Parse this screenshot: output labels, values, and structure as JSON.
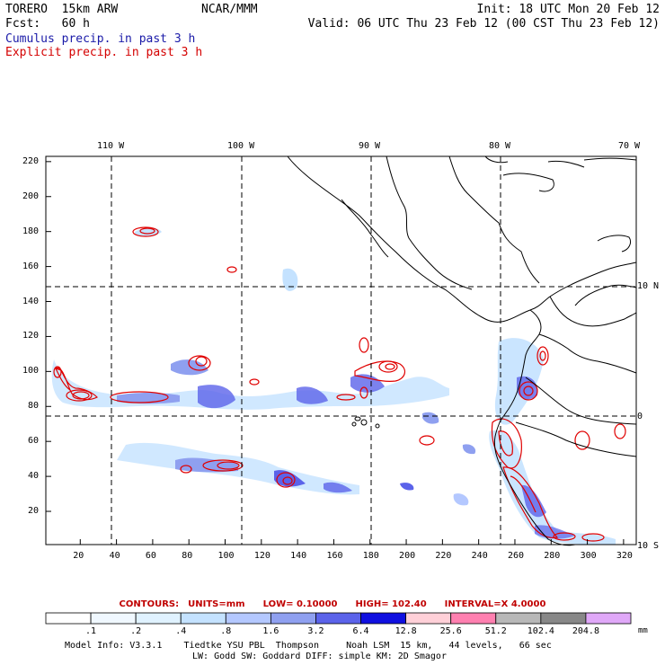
{
  "header": {
    "model": "TORERO  15km ARW",
    "center": "NCAR/MMM",
    "init": "Init: 18 UTC Mon 20 Feb 12",
    "fcst": "Fcst:   60 h",
    "valid": "Valid: 06 UTC Thu 23 Feb 12 (00 CST Thu 23 Feb 12)"
  },
  "legend": {
    "cumulus": "Cumulus precip. in past 3 h",
    "explicit": "Explicit precip. in past 3 h",
    "cumulus_color": "#1a1aa8",
    "explicit_color": "#d40000"
  },
  "map": {
    "lon_labels": [
      "110 W",
      "100 W",
      "90 W",
      "80 W",
      "70 W"
    ],
    "lat_labels": [
      "10 N",
      "0",
      "10 S"
    ],
    "x_ticks": [
      "20",
      "40",
      "60",
      "80",
      "100",
      "120",
      "140",
      "160",
      "180",
      "200",
      "220",
      "240",
      "260",
      "280",
      "300",
      "320"
    ],
    "y_ticks": [
      "20",
      "40",
      "60",
      "80",
      "100",
      "120",
      "140",
      "160",
      "180",
      "200",
      "220"
    ]
  },
  "contour_info": {
    "contours": "CONTOURS:",
    "units": "UNITS=mm",
    "low": "LOW= 0.10000",
    "high": "HIGH=  102.40",
    "interval": "INTERVAL=X  4.0000"
  },
  "colorbar": {
    "labels": [
      ".1",
      ".2",
      ".4",
      ".8",
      "1.6",
      "3.2",
      "6.4",
      "12.8",
      "25.6",
      "51.2",
      "102.4",
      "204.8"
    ],
    "colors": [
      "#ffffff",
      "#f0f8ff",
      "#e0f2ff",
      "#c4e2ff",
      "#b4c8ff",
      "#8fa0f0",
      "#5b63ea",
      "#1010e0",
      "#ffd0d8",
      "#ff80b0",
      "#b8b8b8",
      "#888888",
      "#e0a8f8"
    ],
    "unit": "mm"
  },
  "model_info": {
    "line1": "Model Info: V3.3.1    Tiedtke YSU PBL  Thompson     Noah LSM  15 km,   44 levels,   66 sec",
    "line2": "LW: Godd SW: Goddard DIFF: simple KM: 2D Smagor"
  }
}
